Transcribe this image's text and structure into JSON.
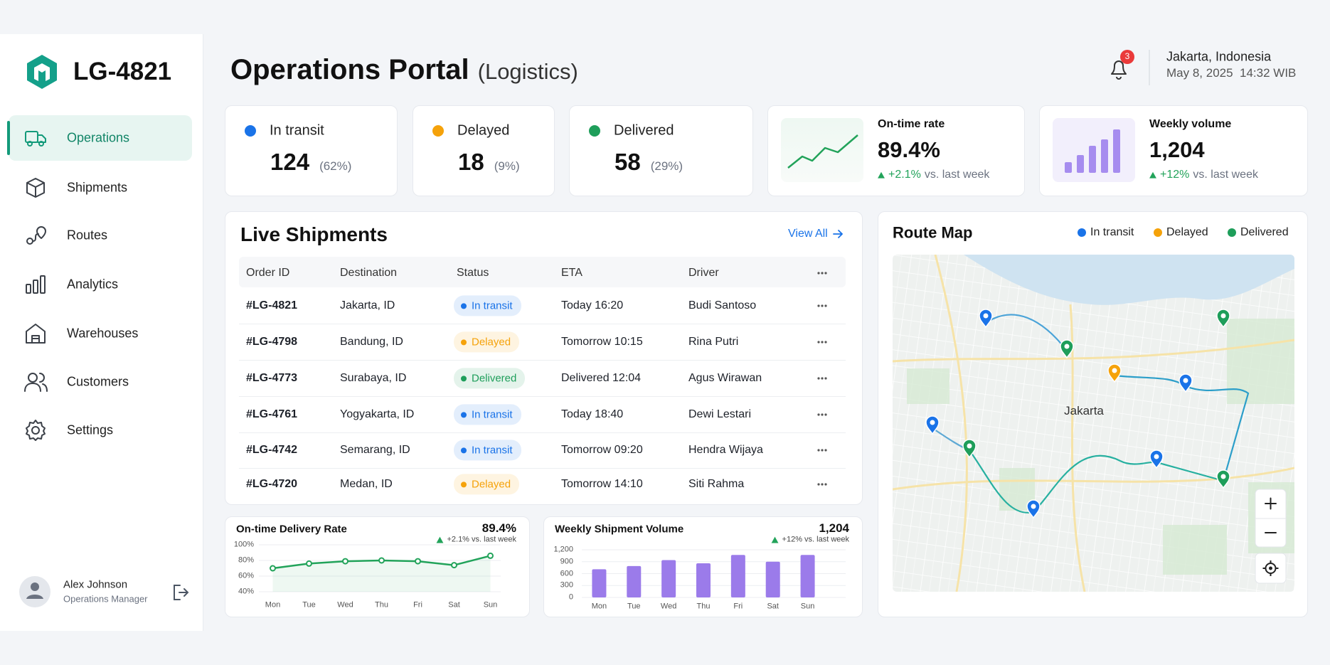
{
  "sidebar": {
    "brand": "LG-4821",
    "nav": [
      "Operations",
      "Shipments",
      "Routes",
      "Analytics",
      "Warehouses",
      "Customers",
      "Settings"
    ],
    "active": 0,
    "user": {
      "name": "Alex Johnson",
      "role": "Operations Manager"
    }
  },
  "header": {
    "title": "Operations Portal",
    "subtitle": "(Logistics)",
    "notifications": 3,
    "location": "Jakarta, Indonesia",
    "datetime": "May 8, 2025  14:32 WIB"
  },
  "stats": [
    {
      "label": "In transit",
      "value": 124,
      "share": "(62%)",
      "color": "#1a73e8"
    },
    {
      "label": "Delayed",
      "value": 18,
      "share": "(9%)",
      "color": "#f5a20a"
    },
    {
      "label": "Delivered",
      "value": 58,
      "share": "(29%)",
      "color": "#1e9e5a"
    }
  ],
  "kpis": [
    {
      "label": "On-time rate",
      "value": "89.4%",
      "delta": "+2.1%",
      "note": "vs. last week"
    },
    {
      "label": "Weekly volume",
      "value": "1,204",
      "delta": "+12%",
      "note": "vs. last week"
    }
  ],
  "shipments": {
    "title": "Live Shipments",
    "link": "View All",
    "columns": [
      "Order ID",
      "Destination",
      "Status",
      "ETA",
      "Driver"
    ],
    "rows": [
      {
        "id": "#LG-4821",
        "destination": "Jakarta, ID",
        "status": "In transit",
        "eta": "Today 16:20",
        "driver": "Budi Santoso"
      },
      {
        "id": "#LG-4798",
        "destination": "Bandung, ID",
        "status": "Delayed",
        "eta": "Tomorrow 10:15",
        "driver": "Rina Putri"
      },
      {
        "id": "#LG-4773",
        "destination": "Surabaya, ID",
        "status": "Delivered",
        "eta": "Delivered 12:04",
        "driver": "Agus Wirawan"
      },
      {
        "id": "#LG-4761",
        "destination": "Yogyakarta, ID",
        "status": "In transit",
        "eta": "Today 18:40",
        "driver": "Dewi Lestari"
      },
      {
        "id": "#LG-4742",
        "destination": "Semarang, ID",
        "status": "In transit",
        "eta": "Tomorrow 09:20",
        "driver": "Hendra Wijaya"
      },
      {
        "id": "#LG-4720",
        "destination": "Medan, ID",
        "status": "Delayed",
        "eta": "Tomorrow 14:10",
        "driver": "Siti Rahma"
      }
    ]
  },
  "chart_data": [
    {
      "type": "line",
      "title": "On-time Delivery Rate",
      "headline": "89.4%",
      "delta": "+2.1% vs. last week",
      "categories": [
        "Mon",
        "Tue",
        "Wed",
        "Thu",
        "Fri",
        "Sat",
        "Sun"
      ],
      "values": [
        70,
        76,
        79,
        80,
        79,
        74,
        86
      ],
      "color": "#22a35a",
      "ylim": [
        40,
        100
      ],
      "yticks": [
        {
          "value": 100,
          "label": "100%"
        },
        {
          "value": 80,
          "label": "80%"
        },
        {
          "value": 60,
          "label": "60%"
        },
        {
          "value": 40,
          "label": "40%"
        }
      ],
      "grid": true
    },
    {
      "type": "bar",
      "title": "Weekly Shipment Volume",
      "headline": "1,204",
      "delta": "+12% vs. last week",
      "categories": [
        "Mon",
        "Tue",
        "Wed",
        "Thu",
        "Fri",
        "Sat",
        "Sun"
      ],
      "values": [
        710,
        790,
        940,
        860,
        1070,
        900,
        1070
      ],
      "color": "#9b7bea",
      "ylim": [
        0,
        1200
      ],
      "yticks": [
        {
          "value": 1200,
          "label": "1,200"
        },
        900,
        600,
        300,
        0
      ],
      "grid": true
    }
  ],
  "map": {
    "title": "Route Map",
    "legend": [
      "In transit",
      "Delayed",
      "Delivered"
    ],
    "city": "Jakarta"
  }
}
